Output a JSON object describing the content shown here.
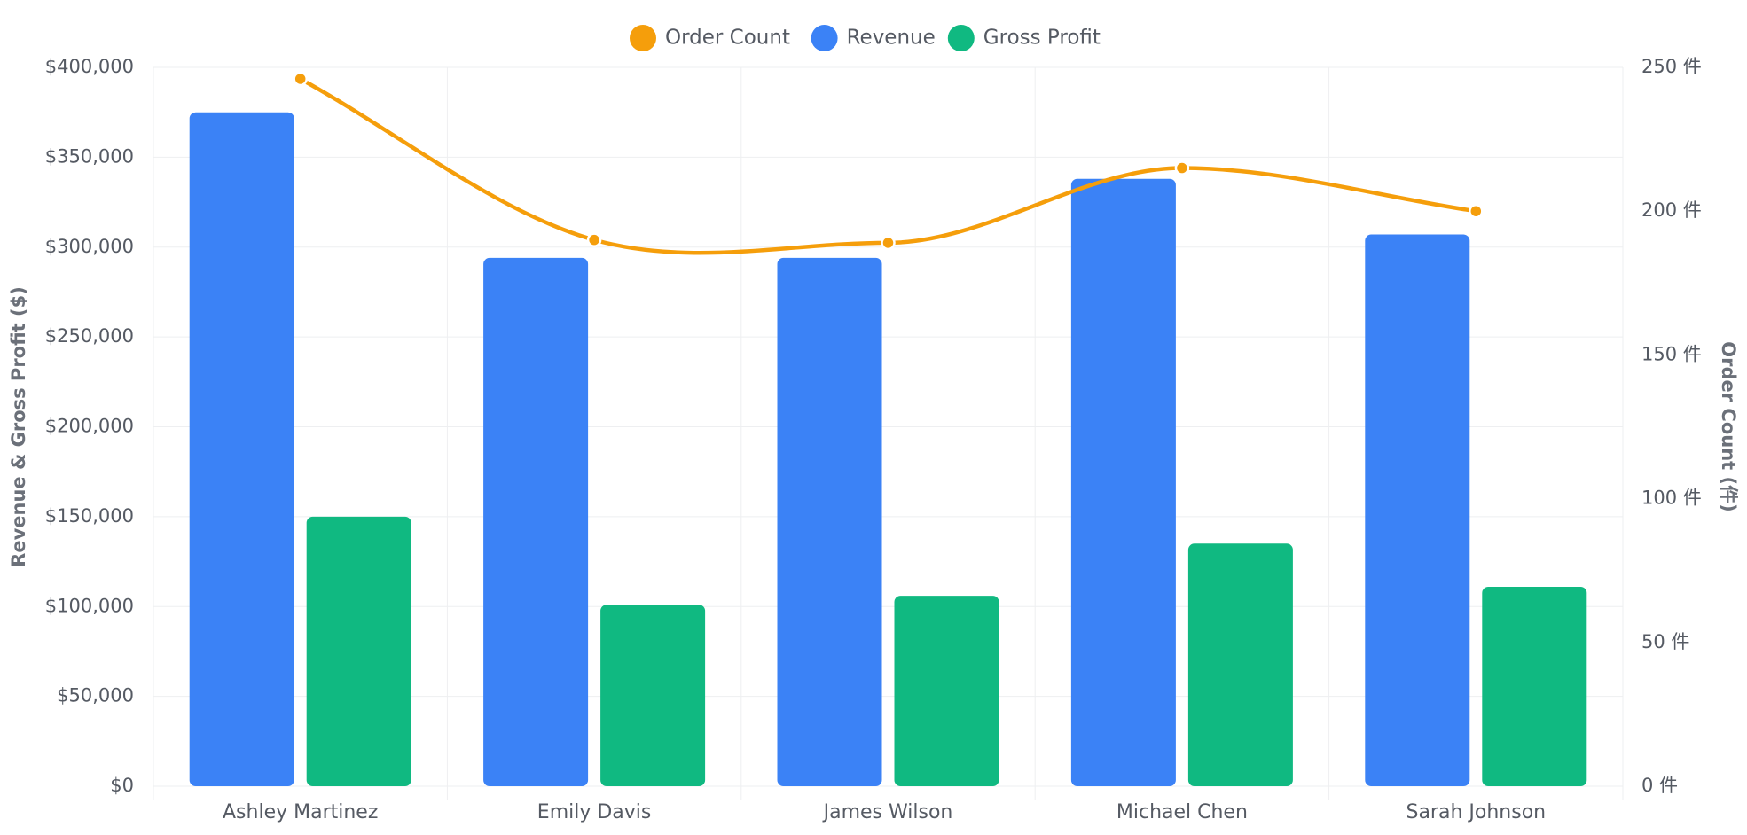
{
  "chart_data": {
    "type": "bar",
    "categories": [
      "Ashley Martinez",
      "Emily Davis",
      "James Wilson",
      "Michael Chen",
      "Sarah Johnson"
    ],
    "series": [
      {
        "name": "Revenue",
        "type": "bar",
        "axis": "left",
        "color": "#3b82f6",
        "values": [
          375000,
          294000,
          294000,
          338000,
          307000
        ]
      },
      {
        "name": "Gross Profit",
        "type": "bar",
        "axis": "left",
        "color": "#10b981",
        "values": [
          150000,
          101000,
          106000,
          135000,
          111000
        ]
      },
      {
        "name": "Order Count",
        "type": "line",
        "axis": "right",
        "color": "#f59e0b",
        "smooth": true,
        "values": [
          246,
          190,
          189,
          215,
          200
        ]
      }
    ],
    "legend": {
      "position": "top-center",
      "items": [
        {
          "name": "Order Count",
          "color": "#f59e0b"
        },
        {
          "name": "Revenue",
          "color": "#3b82f6"
        },
        {
          "name": "Gross Profit",
          "color": "#10b981"
        }
      ]
    },
    "y_left": {
      "label": "Revenue & Gross Profit ($)",
      "min": 0,
      "max": 400000,
      "ticks": [
        "$0",
        "$50,000",
        "$100,000",
        "$150,000",
        "$200,000",
        "$250,000",
        "$300,000",
        "$350,000",
        "$400,000"
      ]
    },
    "y_right": {
      "label": "Order Count (件)",
      "min": 0,
      "max": 250,
      "ticks": [
        "0 件",
        "50 件",
        "100 件",
        "150 件",
        "200 件",
        "250 件"
      ]
    },
    "grid": true
  }
}
